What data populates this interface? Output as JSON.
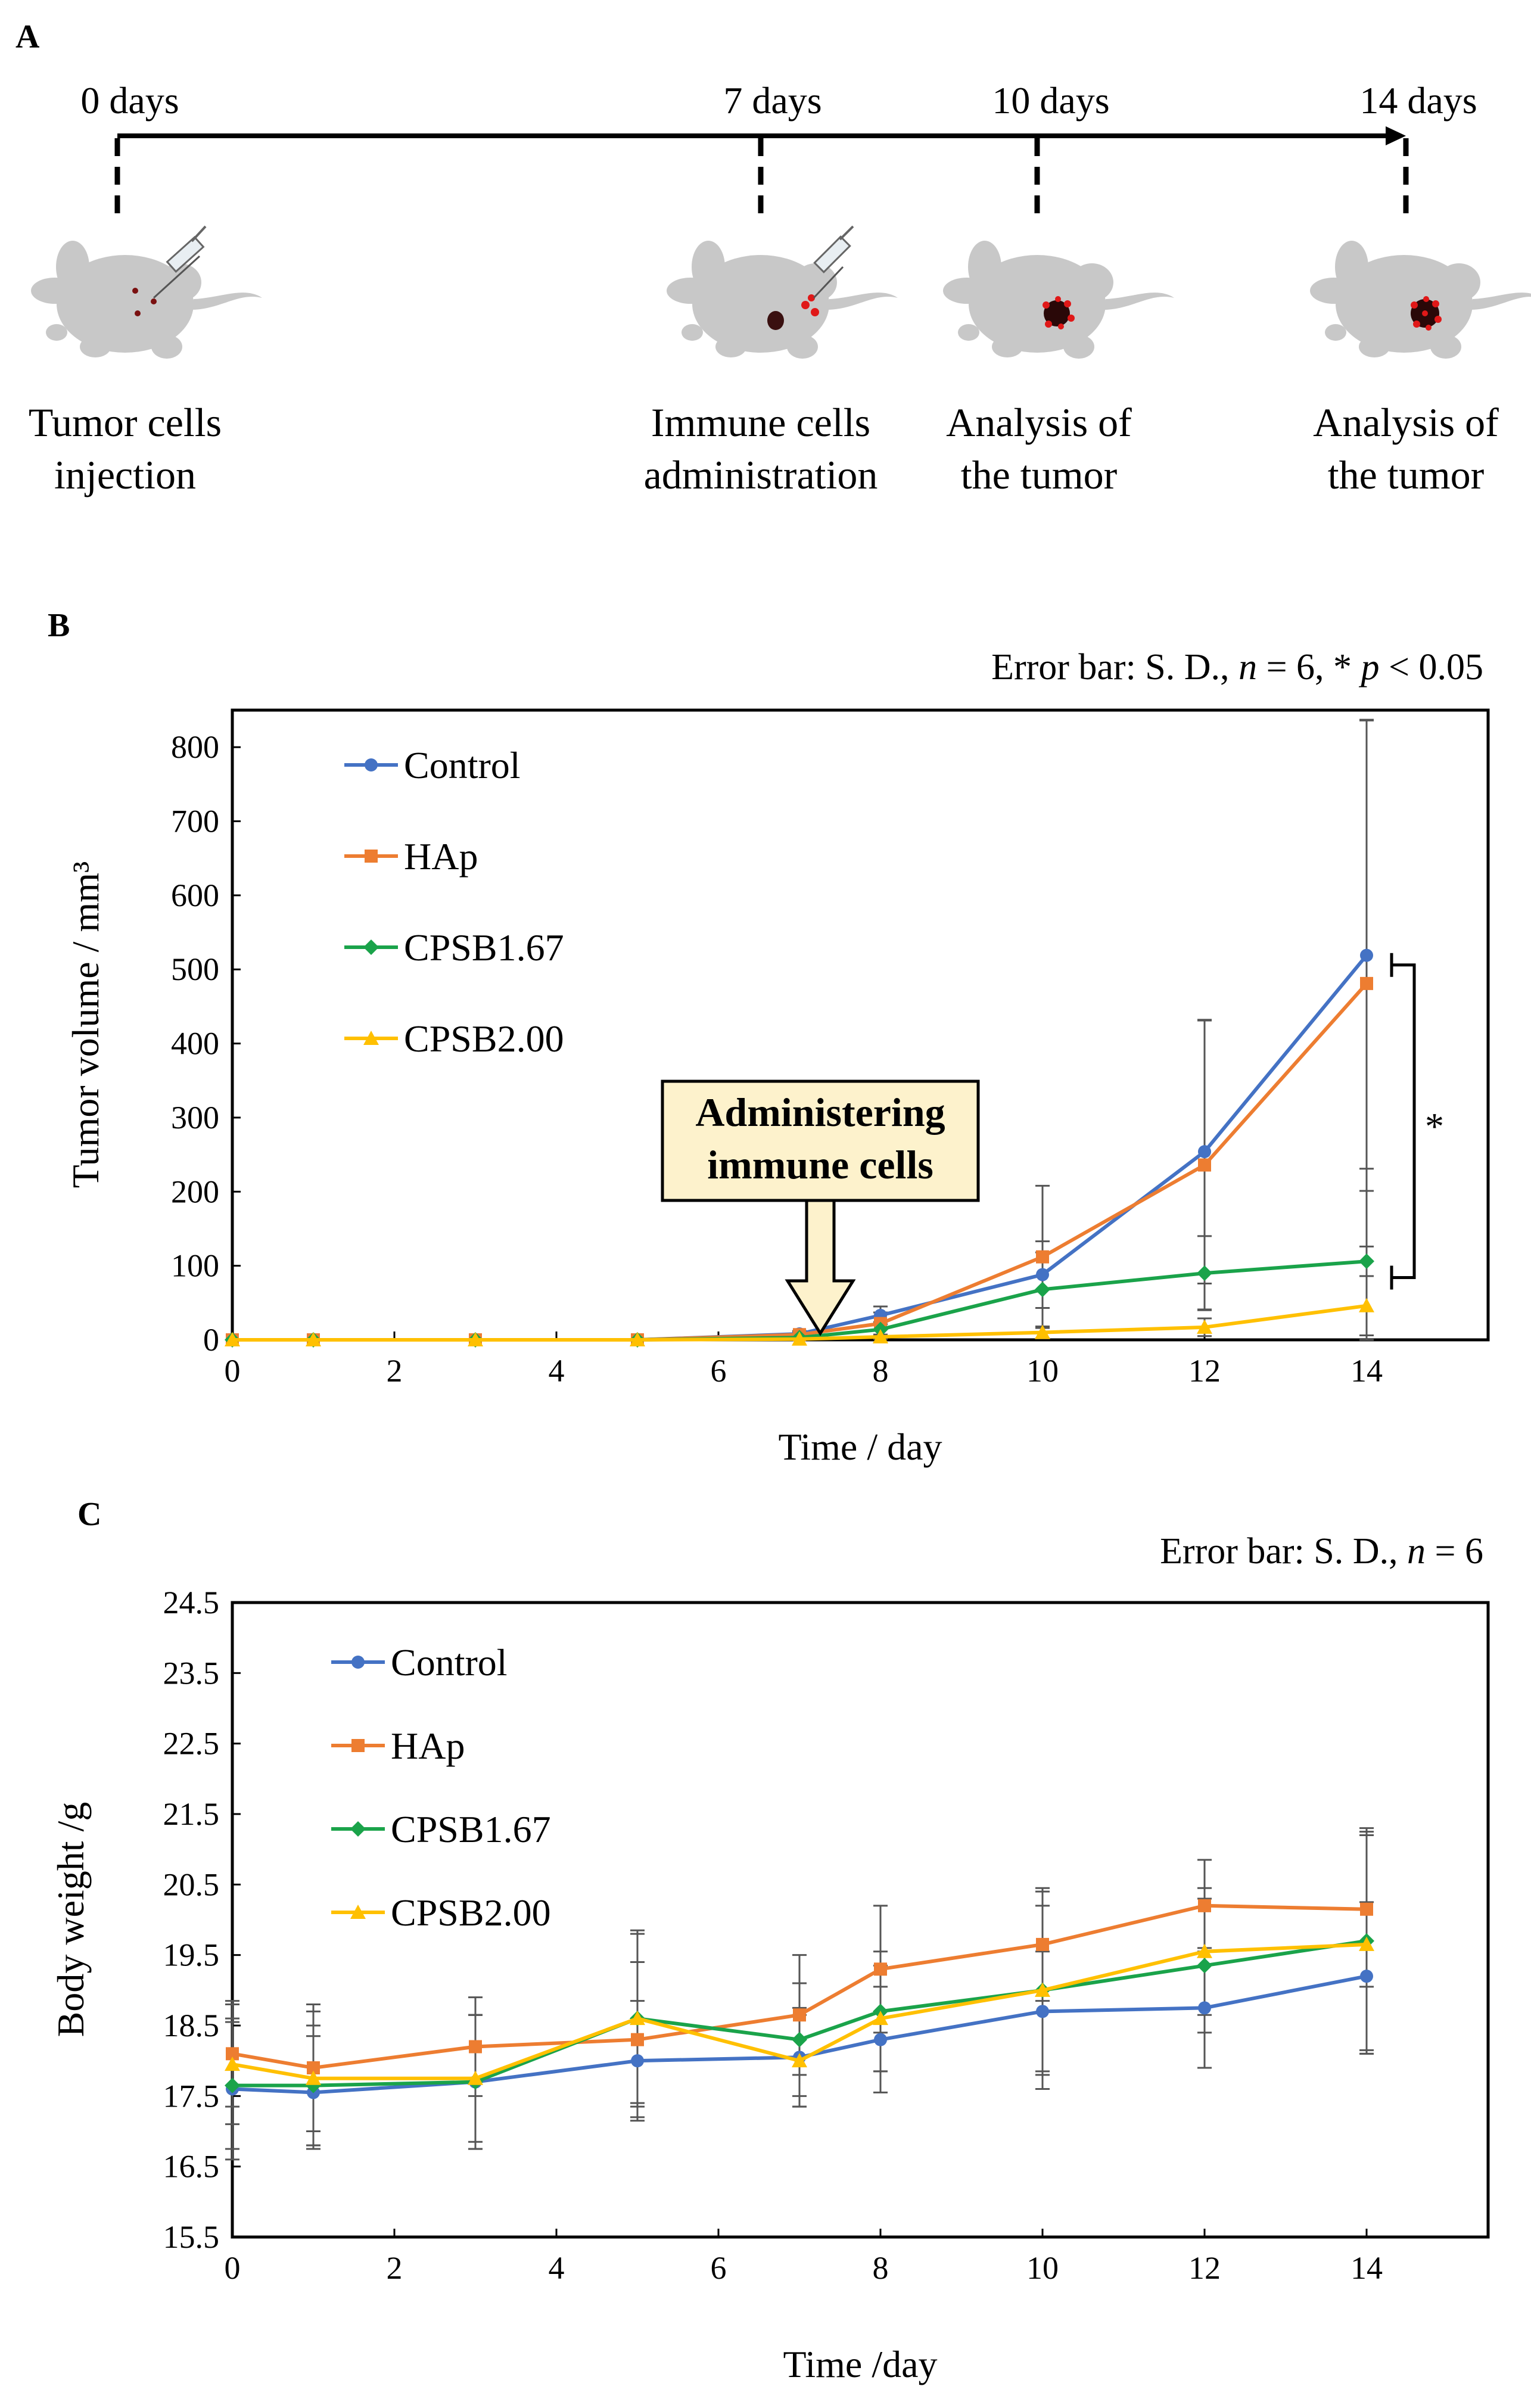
{
  "panel_a": {
    "label": "A",
    "timeline": [
      {
        "day_label": "0 days",
        "caption": [
          "Tumor cells",
          "injection"
        ]
      },
      {
        "day_label": "7 days",
        "caption": [
          "Immune cells",
          "administration"
        ]
      },
      {
        "day_label": "10 days",
        "caption": [
          "Analysis of",
          "the tumor"
        ]
      },
      {
        "day_label": "14 days",
        "caption": [
          "Analysis of",
          "the tumor"
        ]
      }
    ]
  },
  "colors": {
    "Control": "#4472c4",
    "HAp": "#ed7d31",
    "CPSB1.67": "#1aa34a",
    "CPSB2.00": "#ffc000",
    "mouse": "#c8c8c8",
    "callout_fill": "#fdf2cc"
  },
  "chart_data": [
    {
      "panel_label": "B",
      "type": "line",
      "note": {
        "prefix": "Error bar: S. D., ",
        "n_italic": "n",
        "mid": " = 6, * ",
        "p_italic": "p",
        "suffix": " < 0.05"
      },
      "xlabel": "Time / day",
      "ylabel": "Tumor volume / mm³",
      "xlim": [
        0,
        15.5
      ],
      "ylim": [
        0,
        850
      ],
      "xticks": [
        0,
        2,
        4,
        6,
        8,
        10,
        12,
        14
      ],
      "yticks": [
        0,
        100,
        200,
        300,
        400,
        500,
        600,
        700,
        800
      ],
      "x": [
        0,
        1,
        3,
        5,
        7,
        8,
        10,
        12,
        14
      ],
      "series": [
        {
          "name": "Control",
          "marker": "circle",
          "values": [
            0,
            0,
            0,
            0,
            8,
            33,
            88,
            254,
            519
          ],
          "sd": [
            0,
            0,
            0,
            0,
            4,
            12,
            45,
            178,
            318
          ]
        },
        {
          "name": "HAp",
          "marker": "square",
          "values": [
            0,
            0,
            0,
            0,
            7,
            22,
            112,
            236,
            481
          ],
          "sd": [
            0,
            0,
            0,
            0,
            4,
            15,
            96,
            195,
            355
          ]
        },
        {
          "name": "CPSB1.67",
          "marker": "diamond",
          "values": [
            0,
            0,
            0,
            0,
            3,
            14,
            68,
            90,
            106
          ],
          "sd": [
            0,
            0,
            0,
            0,
            2,
            10,
            50,
            50,
            125
          ]
        },
        {
          "name": "CPSB2.00",
          "marker": "triangle",
          "values": [
            0,
            0,
            0,
            0,
            1,
            4,
            10,
            17,
            46
          ],
          "sd": [
            0,
            0,
            0,
            0,
            1,
            3,
            8,
            12,
            40
          ]
        }
      ],
      "annotation": {
        "text": [
          "Administering",
          "immune cells"
        ],
        "at_day": 7
      },
      "significance": {
        "label": "*",
        "at_day": 14,
        "from_value": 506,
        "to_value": 84
      }
    },
    {
      "panel_label": "C",
      "type": "line",
      "note": {
        "prefix": "Error bar: S. D., ",
        "n_italic": "n",
        "suffix": " = 6"
      },
      "xlabel": "Time /day",
      "ylabel": "Body weight /g",
      "xlim": [
        0,
        15.5
      ],
      "ylim": [
        15.5,
        24.5
      ],
      "xticks": [
        0,
        2,
        4,
        6,
        8,
        10,
        12,
        14
      ],
      "yticks": [
        "15.5",
        "16.5",
        "17.5",
        "18.5",
        "19.5",
        "20.5",
        "21.5",
        "22.5",
        "23.5",
        "24.5"
      ],
      "x": [
        0,
        1,
        3,
        5,
        7,
        8,
        10,
        12,
        14
      ],
      "series": [
        {
          "name": "Control",
          "marker": "circle",
          "values": [
            17.6,
            17.55,
            17.7,
            18.0,
            18.05,
            18.3,
            18.7,
            18.75,
            19.2
          ],
          "sd": [
            1.0,
            0.8,
            0.95,
            0.85,
            0.7,
            0.75,
            0.85,
            0.85,
            1.05
          ]
        },
        {
          "name": "HAp",
          "marker": "square",
          "values": [
            18.1,
            17.9,
            18.2,
            18.3,
            18.65,
            19.3,
            19.65,
            20.2,
            20.15
          ],
          "sd": [
            0.75,
            0.9,
            0.7,
            1.1,
            0.85,
            0.9,
            0.8,
            0.65,
            1.1
          ]
        },
        {
          "name": "CPSB1.67",
          "marker": "diamond",
          "values": [
            17.65,
            17.65,
            17.7,
            18.6,
            18.3,
            18.7,
            19.0,
            19.35,
            19.7
          ],
          "sd": [
            0.9,
            0.85,
            0.95,
            1.25,
            0.8,
            0.85,
            1.4,
            0.95,
            1.6
          ]
        },
        {
          "name": "CPSB2.00",
          "marker": "triangle",
          "values": [
            17.95,
            17.75,
            17.75,
            18.6,
            18.0,
            18.6,
            19.0,
            19.55,
            19.65
          ],
          "sd": [
            0.85,
            0.95,
            0.9,
            1.2,
            0.65,
            0.75,
            1.2,
            0.9,
            1.55
          ]
        }
      ]
    }
  ]
}
